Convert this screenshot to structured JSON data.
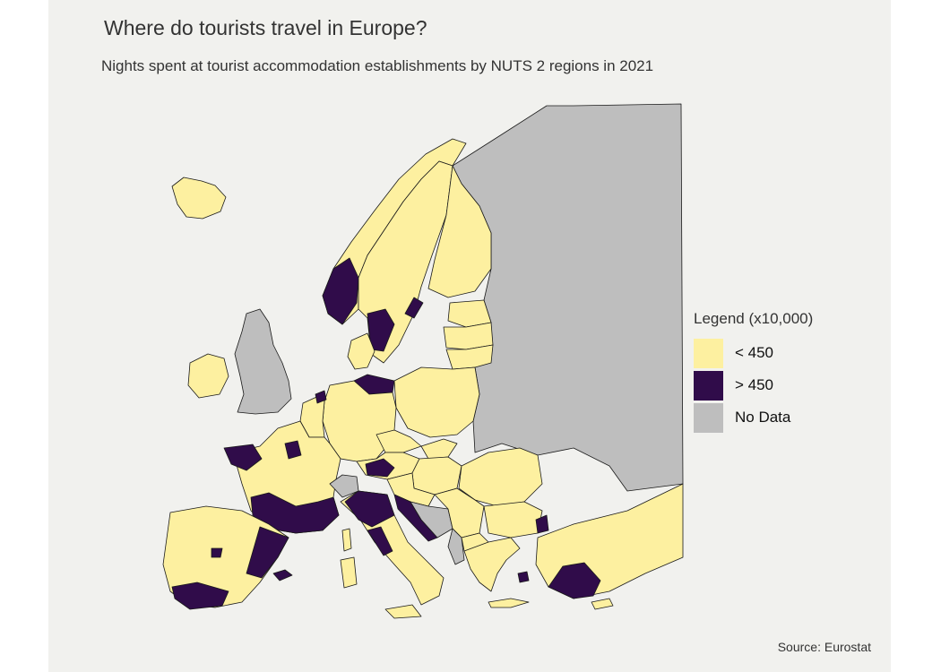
{
  "title": "Where do tourists travel in Europe?",
  "subtitle": "Nights spent at tourist accommodation establishments by NUTS 2 regions in 2021",
  "legend": {
    "title": "Legend (x10,000)",
    "items": [
      {
        "label": "< 450",
        "color": "#fdf0a0"
      },
      {
        "label": "> 450",
        "color": "#300c4a"
      },
      {
        "label": "No Data",
        "color": "#bebebe"
      }
    ]
  },
  "map_colors": {
    "background": "#f1f1ee",
    "low": "#fdf0a0",
    "high": "#300c4a",
    "no_data": "#bebebe",
    "border": "#1a1a1a"
  },
  "source": "Source: Eurostat"
}
